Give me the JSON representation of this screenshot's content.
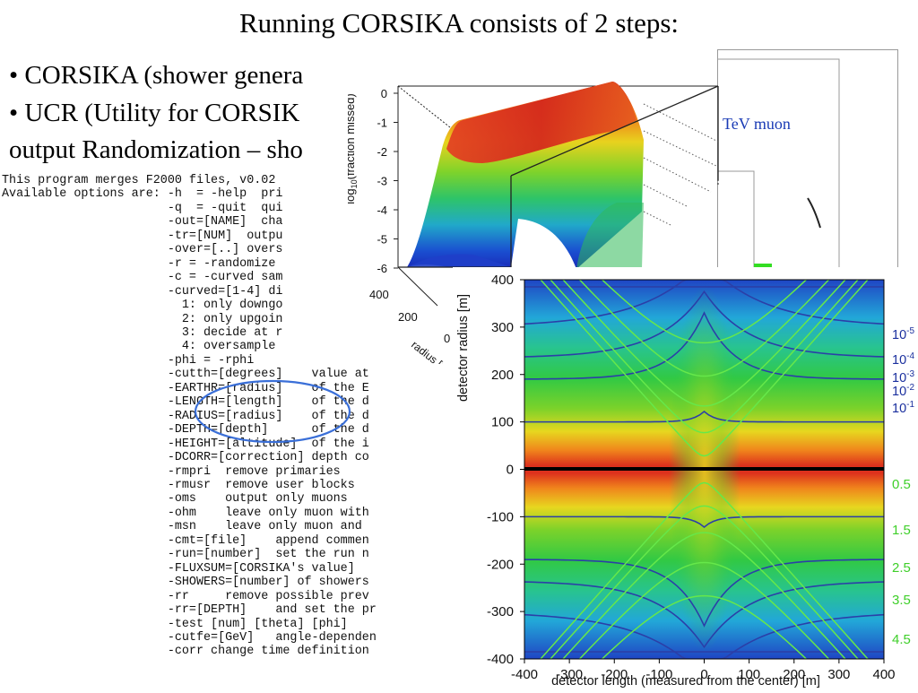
{
  "slide": {
    "title": "Running CORSIKA consists of 2 steps:",
    "bullets": [
      "• CORSIKA (shower genera",
      "• UCR (Utility for CORSIK",
      "output Randomization – sho"
    ]
  },
  "terminal": {
    "lines": [
      "This program merges F2000 files, v0.02",
      "Available options are: -h  = -help  pri",
      "                       -q  = -quit  qui",
      "                       -out=[NAME]  cha",
      "                       -tr=[NUM]  outpu",
      "                       -over=[..] overs",
      "                       -r = -randomize",
      "                       -c = -curved sam",
      "                       -curved=[1-4] di",
      "                         1: only downgo",
      "                         2: only upgoin",
      "                         3: decide at r",
      "                         4: oversample",
      "                       -phi = -rphi",
      "                       -cutth=[degrees]    value at",
      "                       -EARTHR=[radius]    of the E",
      "                       -LENGTH=[length]    of the d",
      "                       -RADIUS=[radius]    of the d",
      "                       -DEPTH=[depth]      of the d",
      "                       -HEIGHT=[altitude]  of the i",
      "                       -DCORR=[correction] depth co",
      "                       -rmpri  remove primaries",
      "                       -rmusr  remove user blocks",
      "                       -oms    output only muons",
      "                       -ohm    leave only muon with",
      "                       -msn    leave only muon and",
      "                       -cmt=[file]    append commen",
      "                       -run=[number]  set the run n",
      "                       -FLUXSUM=[CORSIKA's value]",
      "                       -SHOWERS=[number] of showers",
      "                       -rr     remove possible prev",
      "                       -rr=[DEPTH]    and set the pr",
      "                       -test [num] [theta] [phi]",
      "                       -cutfe=[GeV]   angle-dependen",
      "                       -corr change time definition"
    ],
    "highlight_color": "#3a6fd8"
  },
  "right_panel": {
    "label": "TeV muon"
  },
  "plot3d": {
    "z_ticks": [
      "0",
      "-1",
      "-2",
      "-3",
      "-4",
      "-5",
      "-6"
    ],
    "zlabel_prefix": "log",
    "zlabel_sub": "10",
    "zlabel_suffix": "(fraction missed)",
    "radius_ticks": [
      "400",
      "200",
      "0"
    ],
    "radius_label": "radius [m]"
  },
  "chart_data": {
    "type": "heatmap",
    "xlabel": "detector length (measured from the center) [m]",
    "ylabel": "detector radius [m]",
    "xlim": [
      -400,
      400
    ],
    "ylim": [
      -400,
      400
    ],
    "x_ticks": [
      -400,
      -300,
      -200,
      -100,
      0,
      100,
      200,
      300,
      400
    ],
    "y_ticks": [
      -400,
      -300,
      -200,
      -100,
      0,
      100,
      200,
      300,
      400
    ],
    "contour_labels_blue": [
      {
        "base": "10",
        "exp": "-5"
      },
      {
        "base": "10",
        "exp": "-4"
      },
      {
        "base": "10",
        "exp": "-3"
      },
      {
        "base": "10",
        "exp": "-2"
      },
      {
        "base": "10",
        "exp": "-1"
      }
    ],
    "contour_labels_green": [
      "0.5",
      "1.5",
      "2.5",
      "3.5",
      "4.5"
    ],
    "colors": {
      "blue_contour": "#2b3fa8",
      "green_contour": "#66e84a",
      "center_line": "#000000"
    }
  }
}
